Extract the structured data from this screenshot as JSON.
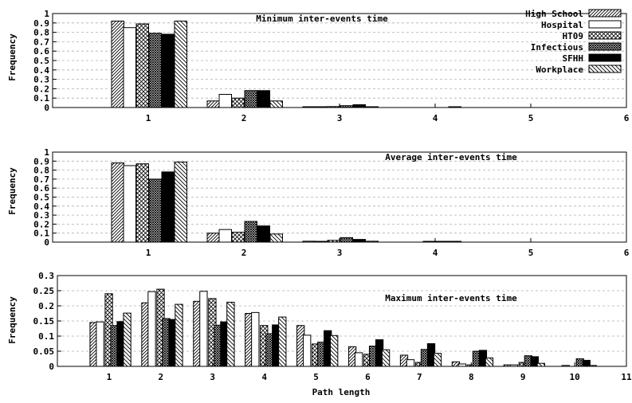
{
  "chart_data": [
    {
      "type": "bar",
      "title": "Minimum inter-events time",
      "xlabel": "",
      "ylabel": "Frequency",
      "categories": [
        "1",
        "2",
        "3",
        "4",
        "5"
      ],
      "x_ticks": [
        "1",
        "2",
        "3",
        "4",
        "5",
        "6"
      ],
      "y_ticks": [
        "0",
        "0.1",
        "0.2",
        "0.3",
        "0.4",
        "0.5",
        "0.6",
        "0.7",
        "0.8",
        "0.9",
        "1"
      ],
      "xlim": [
        0,
        6
      ],
      "ylim": [
        0,
        1
      ],
      "grid": true,
      "legend_position": "top-right",
      "series": [
        {
          "name": "High School",
          "values": [
            0.92,
            0.07,
            0.005,
            0.0,
            0.0
          ]
        },
        {
          "name": "Hospital",
          "values": [
            0.85,
            0.14,
            0.005,
            0.0,
            0.0
          ]
        },
        {
          "name": "HT09",
          "values": [
            0.89,
            0.1,
            0.01,
            0.0,
            0.0
          ]
        },
        {
          "name": "Infectious",
          "values": [
            0.79,
            0.18,
            0.02,
            0.0,
            0.0
          ]
        },
        {
          "name": "SFHH",
          "values": [
            0.78,
            0.18,
            0.03,
            0.005,
            0.0
          ]
        },
        {
          "name": "Workplace",
          "values": [
            0.92,
            0.07,
            0.005,
            0.0,
            0.0
          ]
        }
      ]
    },
    {
      "type": "bar",
      "title": "Average inter-events time",
      "xlabel": "",
      "ylabel": "Frequency",
      "categories": [
        "1",
        "2",
        "3",
        "4",
        "5"
      ],
      "x_ticks": [
        "1",
        "2",
        "3",
        "4",
        "5",
        "6"
      ],
      "y_ticks": [
        "0",
        "0.1",
        "0.2",
        "0.3",
        "0.4",
        "0.5",
        "0.6",
        "0.7",
        "0.8",
        "0.9",
        "1"
      ],
      "xlim": [
        0,
        6
      ],
      "ylim": [
        0,
        1
      ],
      "grid": true,
      "series": [
        {
          "name": "High School",
          "values": [
            0.88,
            0.1,
            0.01,
            0.0,
            0.0
          ]
        },
        {
          "name": "Hospital",
          "values": [
            0.85,
            0.14,
            0.005,
            0.0,
            0.0
          ]
        },
        {
          "name": "HT09",
          "values": [
            0.87,
            0.11,
            0.02,
            0.005,
            0.0
          ]
        },
        {
          "name": "Infectious",
          "values": [
            0.7,
            0.23,
            0.05,
            0.005,
            0.0
          ]
        },
        {
          "name": "SFHH",
          "values": [
            0.78,
            0.18,
            0.03,
            0.005,
            0.0
          ]
        },
        {
          "name": "Workplace",
          "values": [
            0.89,
            0.09,
            0.01,
            0.0,
            0.0
          ]
        }
      ]
    },
    {
      "type": "bar",
      "title": "Maximum inter-events time",
      "xlabel": "Path length",
      "ylabel": "Frequency",
      "categories": [
        "1",
        "2",
        "3",
        "4",
        "5",
        "6",
        "7",
        "8",
        "9",
        "10"
      ],
      "x_ticks": [
        "1",
        "2",
        "3",
        "4",
        "5",
        "6",
        "7",
        "8",
        "9",
        "10",
        "11"
      ],
      "y_ticks": [
        "0",
        "0.05",
        "0.1",
        "0.15",
        "0.2",
        "0.25",
        "0.3"
      ],
      "xlim": [
        0,
        11
      ],
      "ylim": [
        0,
        0.3
      ],
      "grid": true,
      "series": [
        {
          "name": "High School",
          "values": [
            0.145,
            0.21,
            0.215,
            0.175,
            0.135,
            0.065,
            0.037,
            0.015,
            0.005,
            0.0
          ]
        },
        {
          "name": "Hospital",
          "values": [
            0.147,
            0.247,
            0.248,
            0.178,
            0.103,
            0.045,
            0.022,
            0.008,
            0.005,
            0.003
          ]
        },
        {
          "name": "HT09",
          "values": [
            0.24,
            0.255,
            0.224,
            0.135,
            0.074,
            0.04,
            0.013,
            0.005,
            0.013,
            0.0
          ]
        },
        {
          "name": "Infectious",
          "values": [
            0.135,
            0.158,
            0.136,
            0.108,
            0.08,
            0.067,
            0.056,
            0.05,
            0.035,
            0.025
          ]
        },
        {
          "name": "SFHH",
          "values": [
            0.148,
            0.155,
            0.147,
            0.137,
            0.118,
            0.088,
            0.075,
            0.053,
            0.032,
            0.02
          ]
        },
        {
          "name": "Workplace",
          "values": [
            0.176,
            0.205,
            0.212,
            0.163,
            0.102,
            0.055,
            0.043,
            0.028,
            0.01,
            0.003
          ]
        }
      ]
    }
  ]
}
